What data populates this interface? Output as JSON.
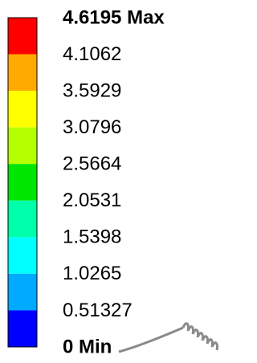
{
  "legend": {
    "labels": [
      "4.6195 Max",
      "4.1062",
      "3.5929",
      "3.0796",
      "2.5664",
      "2.0531",
      "1.5398",
      "1.0265",
      "0.51327",
      "0 Min"
    ],
    "colors": [
      "#ff0000",
      "#ffaa00",
      "#ffff00",
      "#b4ff00",
      "#00e600",
      "#00ffaa",
      "#00ffff",
      "#00aaff",
      "#0000ff"
    ]
  }
}
